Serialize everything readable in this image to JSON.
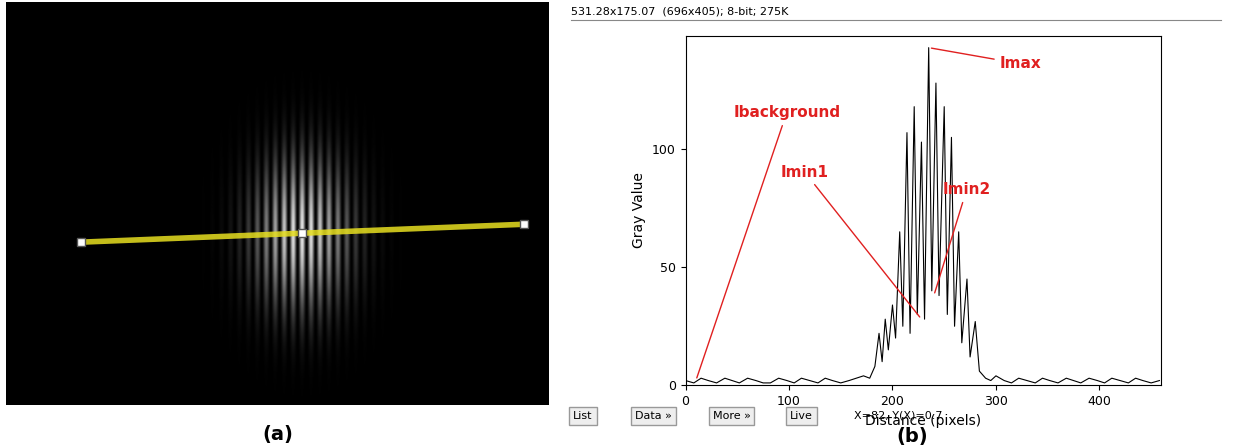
{
  "chart_data": {
    "type": "line",
    "xlabel": "Distance (pixels)",
    "ylabel": "Gray Value",
    "color": "#000000",
    "x": [
      0,
      8,
      15,
      22,
      30,
      38,
      45,
      52,
      60,
      68,
      75,
      82,
      90,
      98,
      105,
      112,
      120,
      128,
      135,
      142,
      150,
      158,
      165,
      172,
      178,
      183,
      187,
      190,
      193,
      196,
      200,
      203,
      207,
      210,
      214,
      217,
      221,
      224,
      228,
      231,
      235,
      238,
      242,
      245,
      250,
      253,
      257,
      260,
      264,
      267,
      272,
      275,
      280,
      284,
      290,
      295,
      300,
      308,
      315,
      322,
      330,
      338,
      345,
      352,
      360,
      368,
      375,
      382,
      390,
      398,
      405,
      412,
      420,
      428,
      435,
      442,
      450,
      458
    ],
    "values": [
      2,
      1,
      3,
      2,
      1,
      3,
      2,
      1,
      3,
      2,
      1,
      1,
      3,
      2,
      1,
      3,
      2,
      1,
      3,
      2,
      1,
      2,
      3,
      4,
      3,
      8,
      22,
      10,
      28,
      15,
      34,
      20,
      65,
      25,
      107,
      22,
      118,
      30,
      103,
      28,
      143,
      40,
      128,
      38,
      118,
      30,
      105,
      25,
      65,
      18,
      45,
      12,
      27,
      6,
      3,
      2,
      4,
      2,
      1,
      3,
      2,
      1,
      3,
      2,
      1,
      3,
      2,
      1,
      3,
      2,
      1,
      3,
      2,
      1,
      3,
      2,
      1,
      2
    ],
    "xlim": [
      0,
      460
    ],
    "ylim": [
      0,
      148
    ],
    "xticks": [
      0,
      100,
      200,
      300,
      400
    ],
    "yticks": [
      0,
      50,
      100
    ],
    "annotations": [
      {
        "text": "Ibackground",
        "x": 10,
        "y": 2,
        "color": "#e02020"
      },
      {
        "text": "Imin1",
        "x": 228,
        "y": 28,
        "color": "#e02020"
      },
      {
        "text": "Imin2",
        "x": 240,
        "y": 38,
        "color": "#e02020"
      },
      {
        "text": "Imax",
        "x": 235,
        "y": 143,
        "color": "#e02020"
      }
    ]
  },
  "panel_labels": [
    "(a)",
    "(b)"
  ],
  "window": {
    "header": "531.28x175.07  (696x405); 8-bit; 275K",
    "buttons": [
      "List",
      "Data »",
      "More »",
      "Live"
    ],
    "status": "X=82, Y(X)=0.7"
  }
}
